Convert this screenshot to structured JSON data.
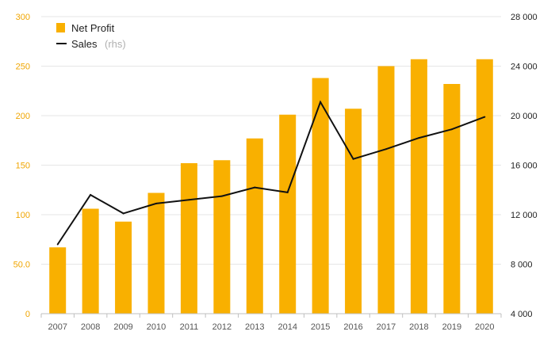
{
  "chart_data": {
    "type": "bar",
    "categories": [
      "2007",
      "2008",
      "2009",
      "2010",
      "2011",
      "2012",
      "2013",
      "2014",
      "2015",
      "2016",
      "2017",
      "2018",
      "2019",
      "2020"
    ],
    "series": [
      {
        "name": "Net Profit",
        "type": "bar",
        "axis": "left",
        "color": "#f9b000",
        "values": [
          67,
          106,
          93,
          122,
          152,
          155,
          177,
          201,
          238,
          207,
          250,
          257,
          232,
          257
        ]
      },
      {
        "name": "Sales",
        "type": "line",
        "axis": "right",
        "color": "#111111",
        "values": [
          9600,
          13600,
          12100,
          12900,
          13200,
          13500,
          14200,
          13800,
          21100,
          16500,
          17300,
          18200,
          18900,
          19900
        ]
      }
    ],
    "legend": {
      "placement": "top-left",
      "items": [
        {
          "label": "Net Profit",
          "suffix": ""
        },
        {
          "label": "Sales",
          "suffix": "(rhs)"
        }
      ]
    },
    "y_left": {
      "ylim": [
        0,
        300
      ],
      "ticks": [
        0,
        50,
        100,
        150,
        200,
        250,
        300
      ],
      "tick_labels": [
        "0",
        "50.0",
        "100",
        "150",
        "200",
        "250",
        "300"
      ],
      "color": "#f0a500"
    },
    "y_right": {
      "ylim": [
        4000,
        28000
      ],
      "ticks": [
        4000,
        8000,
        12000,
        16000,
        20000,
        24000,
        28000
      ],
      "tick_labels": [
        "4 000",
        "8 000",
        "12 000",
        "16 000",
        "20 000",
        "24 000",
        "28 000"
      ]
    },
    "grid": true,
    "title": "",
    "xlabel": "",
    "ylabel": ""
  }
}
